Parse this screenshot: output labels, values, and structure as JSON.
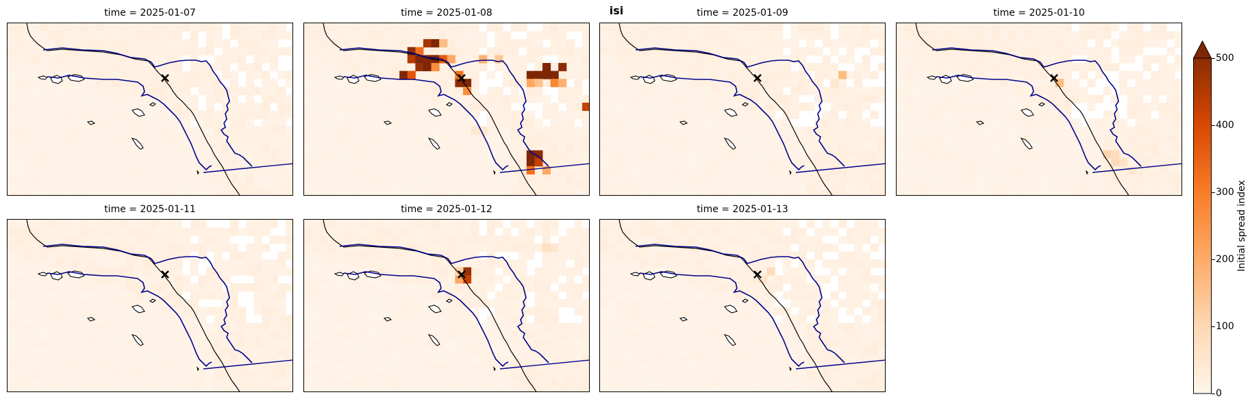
{
  "title": "isi",
  "colorbar": {
    "label": "Initial spread index",
    "ticks": [
      "0",
      "100",
      "200",
      "300",
      "400",
      "500"
    ],
    "min": 0,
    "max": 500,
    "extend": "max",
    "colormap": "Oranges"
  },
  "panels": [
    {
      "title": "time = 2025-01-07"
    },
    {
      "title": "time = 2025-01-08"
    },
    {
      "title": "time = 2025-01-09"
    },
    {
      "title": "time = 2025-01-10"
    },
    {
      "title": "time = 2025-01-11"
    },
    {
      "title": "time = 2025-01-12"
    },
    {
      "title": "time = 2025-01-13"
    }
  ],
  "map_features": {
    "marker": "x-marker",
    "coastline_color": "#000000",
    "boundary_color": "#00008b"
  },
  "colors": {
    "low": "#fff5eb",
    "mid": "#fd8d3c",
    "high": "#7f2704"
  }
}
